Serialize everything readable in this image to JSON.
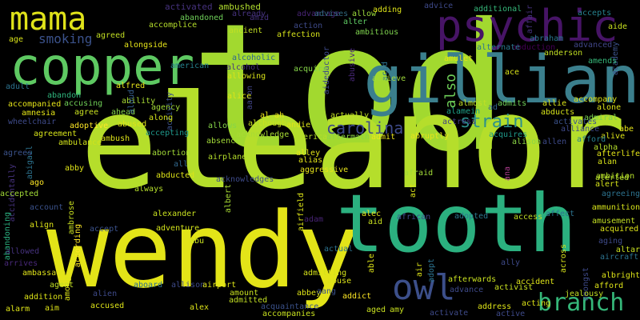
{
  "cloud": {
    "background": "#000000",
    "words": [
      {
        "t": "tod",
        "c": "#a2d92f"
      },
      {
        "t": "eleanor",
        "c": "#b5de2b"
      },
      {
        "t": "wendy",
        "c": "#e3e418"
      },
      {
        "t": "tooth",
        "c": "#2bb07f"
      },
      {
        "t": "gillian",
        "c": "#3b7f8d"
      },
      {
        "t": "copper",
        "c": "#5ec962"
      },
      {
        "t": "psychic",
        "c": "#471466"
      },
      {
        "t": "mama",
        "c": "#e0e31a"
      },
      {
        "t": "owl",
        "c": "#3c4f8a"
      },
      {
        "t": "branch",
        "c": "#35b779"
      },
      {
        "t": "strain",
        "c": "#2c8f8c"
      },
      {
        "t": "carolina",
        "c": "#3e4a89"
      },
      {
        "t": "smoking",
        "c": "#3b528b"
      },
      {
        "t": "also",
        "c": "#6ece58"
      },
      {
        "t": "activated",
        "c": "#46327e"
      },
      {
        "t": "ambushed",
        "c": "#b1dd2e"
      },
      {
        "t": "already",
        "c": "#46327e"
      },
      {
        "t": "advantage",
        "c": "#482475"
      },
      {
        "t": "advises",
        "c": "#30687e"
      },
      {
        "t": "allow",
        "c": "#9bd93c"
      },
      {
        "t": "adding",
        "c": "#dde318"
      },
      {
        "t": "advice",
        "c": "#3e4989"
      },
      {
        "t": "additional",
        "c": "#35b779"
      },
      {
        "t": "affair",
        "c": "#46327e"
      },
      {
        "t": "accepts",
        "c": "#26828e"
      },
      {
        "t": "aide",
        "c": "#c8e020"
      },
      {
        "t": "agreed",
        "c": "#c2df23"
      },
      {
        "t": "accomplice",
        "c": "#b5de2b"
      },
      {
        "t": "abandoned",
        "c": "#6ece58"
      },
      {
        "t": "amid",
        "c": "#46327e"
      },
      {
        "t": "action",
        "c": "#3e4a89"
      },
      {
        "t": "alter",
        "c": "#5ec962"
      },
      {
        "t": "ambitious",
        "c": "#7fd34e"
      },
      {
        "t": "abraham",
        "c": "#2a788e"
      },
      {
        "t": "advanced",
        "c": "#404688"
      },
      {
        "t": "age",
        "c": "#d8e219"
      },
      {
        "t": "ancient",
        "c": "#c2df23"
      },
      {
        "t": "affection",
        "c": "#d5e21a"
      },
      {
        "t": "abusive",
        "c": "#482878"
      },
      {
        "t": "actor",
        "c": "#3e4a89"
      },
      {
        "t": "abduction",
        "c": "#440154"
      },
      {
        "t": "alternate",
        "c": "#2a788e"
      },
      {
        "t": "anderson",
        "c": "#c2df23"
      },
      {
        "t": "academy",
        "c": "#3b528b"
      },
      {
        "t": "alongside",
        "c": "#e5e419"
      },
      {
        "t": "american",
        "c": "#26828e"
      },
      {
        "t": "alcoholic",
        "c": "#31688e"
      },
      {
        "t": "alcohol",
        "c": "#46327e"
      },
      {
        "t": "amulet",
        "c": "#e3e418"
      },
      {
        "t": "amends",
        "c": "#35b779"
      },
      {
        "t": "ace",
        "c": "#d8e219"
      },
      {
        "t": "acid",
        "c": "#2c728e"
      },
      {
        "t": "allowing",
        "c": "#d8e219"
      },
      {
        "t": "acquire",
        "c": "#86d549"
      },
      {
        "t": "aided",
        "c": "#3e4a89"
      },
      {
        "t": "achieve",
        "c": "#9fda3a"
      },
      {
        "t": "adult",
        "c": "#2c728e"
      },
      {
        "t": "alfred",
        "c": "#e7e419"
      },
      {
        "t": "aaron",
        "c": "#414487"
      },
      {
        "t": "alice",
        "c": "#dde318"
      },
      {
        "t": "abandon",
        "c": "#2fb47c"
      },
      {
        "t": "accusing",
        "c": "#70cf57"
      },
      {
        "t": "ability",
        "c": "#a8db34"
      },
      {
        "t": "agency",
        "c": "#a2da37"
      },
      {
        "t": "activity",
        "c": "#3b528b"
      },
      {
        "t": "almost",
        "c": "#c0df25"
      },
      {
        "t": "ad",
        "c": "#33638d"
      },
      {
        "t": "admits",
        "c": "#6ece58"
      },
      {
        "t": "allie",
        "c": "#d8e219"
      },
      {
        "t": "accompany",
        "c": "#dde318"
      },
      {
        "t": "alone",
        "c": "#dde318"
      },
      {
        "t": "accompanied",
        "c": "#e5e419"
      },
      {
        "t": "agree",
        "c": "#c8e020"
      },
      {
        "t": "ahead",
        "c": "#86d549"
      },
      {
        "t": "aloud",
        "c": "#355f8d"
      },
      {
        "t": "al ah",
        "c": "#e7e419"
      },
      {
        "t": "alamein",
        "c": "#1fa188"
      },
      {
        "t": "abducts",
        "c": "#d5e21a"
      },
      {
        "t": "admiral",
        "c": "#7ad151"
      },
      {
        "t": "amnesia",
        "c": "#e3e418"
      },
      {
        "t": "wheelchair",
        "c": "#3e4a89"
      },
      {
        "t": "along",
        "c": "#d2e21b"
      },
      {
        "t": "abused",
        "c": "#dde318"
      },
      {
        "t": "although",
        "c": "#c8e020"
      },
      {
        "t": "andie",
        "c": "#dde318"
      },
      {
        "t": "actually",
        "c": "#c0df25"
      },
      {
        "t": "actress",
        "c": "#433e85"
      },
      {
        "t": "activates",
        "c": "#3b528b"
      },
      {
        "t": "alliance",
        "c": "#3e4989"
      },
      {
        "t": "abe",
        "c": "#e5e419"
      },
      {
        "t": "adoptive",
        "c": "#fde725"
      },
      {
        "t": "agreement",
        "c": "#d5e21a"
      },
      {
        "t": "accepting",
        "c": "#1f988b"
      },
      {
        "t": "allows",
        "c": "#86d549"
      },
      {
        "t": "acknowledge",
        "c": "#a8db34"
      },
      {
        "t": "america",
        "c": "#b5de2b"
      },
      {
        "t": "aftermath",
        "c": "#8bd646"
      },
      {
        "t": "admit",
        "c": "#ece51b"
      },
      {
        "t": "abruptly",
        "c": "#e5e419"
      },
      {
        "t": "acquires",
        "c": "#1f9a8a"
      },
      {
        "t": "alive",
        "c": "#dde318"
      },
      {
        "t": "afford",
        "c": "#277f8e"
      },
      {
        "t": "alison",
        "c": "#8bd646"
      },
      {
        "t": "allen",
        "c": "#3e4a89"
      },
      {
        "t": "alpha",
        "c": "#b5de2b"
      },
      {
        "t": "ambulance",
        "c": "#d2e21b"
      },
      {
        "t": "ambush",
        "c": "#dde318"
      },
      {
        "t": "absence",
        "c": "#a2da37"
      },
      {
        "t": "abigail",
        "c": "#2c728e"
      },
      {
        "t": "agrees",
        "c": "#3b528b"
      },
      {
        "t": "abortion",
        "c": "#a2da37"
      },
      {
        "t": "alley",
        "c": "#e3e418"
      },
      {
        "t": "afterlife",
        "c": "#e3e418"
      },
      {
        "t": "alan",
        "c": "#d8e219"
      },
      {
        "t": "alerted",
        "c": "#b5de2b"
      },
      {
        "t": "abby",
        "c": "#dde318"
      },
      {
        "t": "accidentally",
        "c": "#46327e"
      },
      {
        "t": "all",
        "c": "#31688e"
      },
      {
        "t": "airplane",
        "c": "#b5de2b"
      },
      {
        "t": "alias",
        "c": "#e3e418"
      },
      {
        "t": "abducted",
        "c": "#dde318"
      },
      {
        "t": "ambition",
        "c": "#b5de2b"
      },
      {
        "t": "aggressive",
        "c": "#e7e419"
      },
      {
        "t": "ana",
        "c": "#ab3b8c"
      },
      {
        "t": "afraid",
        "c": "#a2da37"
      },
      {
        "t": "alert",
        "c": "#d5e21a"
      },
      {
        "t": "always",
        "c": "#b5de2b"
      },
      {
        "t": "acknowledges",
        "c": "#3e4a89"
      },
      {
        "t": "ago",
        "c": "#fde725"
      },
      {
        "t": "albert",
        "c": "#a8db34"
      },
      {
        "t": "airfield",
        "c": "#dde318"
      },
      {
        "t": "act",
        "c": "#dde318"
      },
      {
        "t": "agreeing",
        "c": "#2c728e"
      },
      {
        "t": "accepted",
        "c": "#a2da37"
      },
      {
        "t": "account",
        "c": "#3b528b"
      },
      {
        "t": "ambrose",
        "c": "#c8e020"
      },
      {
        "t": "abandoning",
        "c": "#2ab07f"
      },
      {
        "t": "according",
        "c": "#fde725"
      },
      {
        "t": "ammunition",
        "c": "#d5e21a"
      },
      {
        "t": "affect",
        "c": "#2c728e"
      },
      {
        "t": "alexander",
        "c": "#c8e020"
      },
      {
        "t": "adventure",
        "c": "#d2e21b"
      },
      {
        "t": "abu",
        "c": "#c8e020"
      },
      {
        "t": "alec",
        "c": "#e5e419"
      },
      {
        "t": "african",
        "c": "#3e4a89"
      },
      {
        "t": "adopted",
        "c": "#2a788e"
      },
      {
        "t": "amusement",
        "c": "#c2df23"
      },
      {
        "t": "acquired",
        "c": "#dde318"
      },
      {
        "t": "align",
        "c": "#dde318"
      },
      {
        "t": "accept",
        "c": "#3b528b"
      },
      {
        "t": "adam",
        "c": "#482475"
      },
      {
        "t": "aid",
        "c": "#c8e020"
      },
      {
        "t": "access",
        "c": "#c0df25"
      },
      {
        "t": "aging",
        "c": "#3e4a89"
      },
      {
        "t": "altar",
        "c": "#c8e020"
      },
      {
        "t": "across",
        "c": "#d5e21a"
      },
      {
        "t": "aircraft",
        "c": "#2c728e"
      },
      {
        "t": "allowed",
        "c": "#46327e"
      },
      {
        "t": "actual",
        "c": "#2c728e"
      },
      {
        "t": "able",
        "c": "#dde318"
      },
      {
        "t": "arrives",
        "c": "#482878"
      },
      {
        "t": "ambassador",
        "c": "#e0e31a"
      },
      {
        "t": "agent",
        "c": "#c2df23"
      },
      {
        "t": "addition",
        "c": "#dde318"
      },
      {
        "t": "alarm",
        "c": "#dde318"
      },
      {
        "t": "aboard",
        "c": "#2c728e"
      },
      {
        "t": "among",
        "c": "#dde318"
      },
      {
        "t": "alien",
        "c": "#3e4a89"
      },
      {
        "t": "allison",
        "c": "#3e4a89"
      },
      {
        "t": "airport",
        "c": "#dde318"
      },
      {
        "t": "amount",
        "c": "#c8e020"
      },
      {
        "t": "admitted",
        "c": "#c2df23"
      },
      {
        "t": "admitting",
        "c": "#d5e21a"
      },
      {
        "t": "abuse",
        "c": "#dde318"
      },
      {
        "t": "abbey",
        "c": "#dde318"
      },
      {
        "t": "aang",
        "c": "#3b528b"
      },
      {
        "t": "addict",
        "c": "#fde725"
      },
      {
        "t": "adopt",
        "c": "#2c728e"
      },
      {
        "t": "afterwards",
        "c": "#c8e020"
      },
      {
        "t": "activist",
        "c": "#c8e020"
      },
      {
        "t": "advance",
        "c": "#3e4a89"
      },
      {
        "t": "amongst",
        "c": "#3e4a89"
      },
      {
        "t": "accident",
        "c": "#dde318"
      },
      {
        "t": "jealousy",
        "c": "#c2df23"
      },
      {
        "t": "afford",
        "c": "#dde318"
      },
      {
        "t": "albright",
        "c": "#dde318"
      },
      {
        "t": "aim",
        "c": "#dde318"
      },
      {
        "t": "accused",
        "c": "#dde318"
      },
      {
        "t": "alex",
        "c": "#dde318"
      },
      {
        "t": "acquaintance",
        "c": "#3b528b"
      },
      {
        "t": "accompanies",
        "c": "#c8e020"
      },
      {
        "t": "aged",
        "c": "#c8e020"
      },
      {
        "t": "amy",
        "c": "#c8e020"
      },
      {
        "t": "activate",
        "c": "#3e4a89"
      },
      {
        "t": "address",
        "c": "#dde318"
      },
      {
        "t": "active",
        "c": "#3e4a89"
      },
      {
        "t": "acting",
        "c": "#dde318"
      },
      {
        "t": "ally",
        "c": "#3e4a89"
      },
      {
        "t": "air",
        "c": "#dde318"
      },
      {
        "t": "agencies",
        "c": "#482878"
      }
    ]
  }
}
